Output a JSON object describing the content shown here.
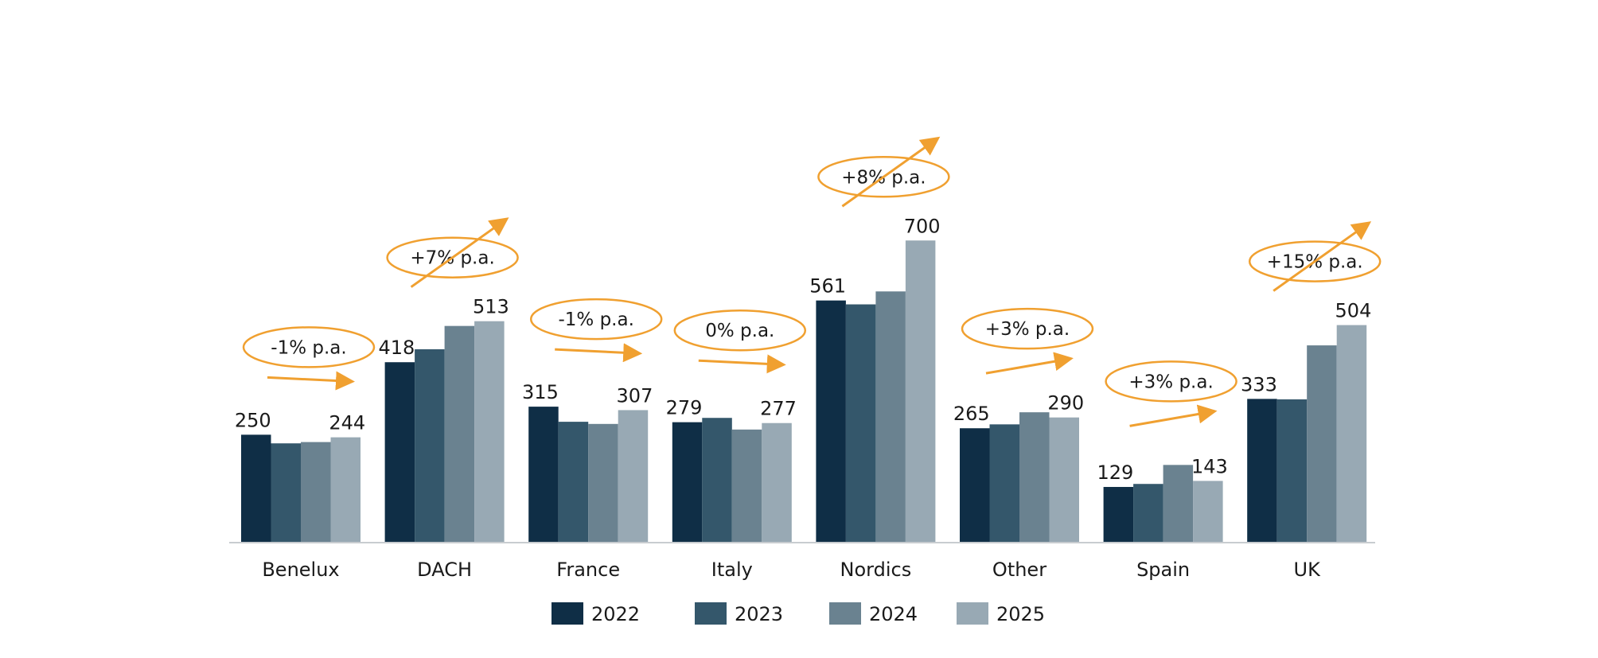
{
  "chart_data": {
    "type": "bar",
    "categories": [
      "Benelux",
      "DACH",
      "France",
      "Italy",
      "Nordics",
      "Other",
      "Spain",
      "UK"
    ],
    "series": [
      {
        "name": "2022",
        "color": "#0f2e46",
        "values": [
          250,
          418,
          315,
          279,
          561,
          265,
          129,
          333
        ]
      },
      {
        "name": "2023",
        "color": "#34576b",
        "values": [
          230,
          448,
          280,
          289,
          552,
          274,
          136,
          332
        ]
      },
      {
        "name": "2024",
        "color": "#6a8290",
        "values": [
          233,
          502,
          275,
          262,
          582,
          302,
          180,
          457
        ]
      },
      {
        "name": "2025",
        "color": "#98a9b4",
        "values": [
          244,
          513,
          307,
          277,
          700,
          290,
          143,
          504
        ]
      }
    ],
    "data_labels": {
      "2022": [
        "250",
        "418",
        "315",
        "279",
        "561",
        "265",
        "129",
        "333"
      ],
      "2025": [
        "244",
        "513",
        "307",
        "277",
        "700",
        "290",
        "143",
        "504"
      ]
    },
    "growth_annotations": [
      "-1% p.a.",
      "+7% p.a.",
      "-1% p.a.",
      "0% p.a.",
      "+8% p.a.",
      "+3% p.a.",
      "+3% p.a.",
      "+15% p.a."
    ],
    "growth_trend": [
      "flat",
      "up",
      "flat",
      "flat",
      "up",
      "slight-up",
      "slight-up",
      "up"
    ],
    "annotation_color": "#f0a030",
    "ylim": [
      0,
      700
    ],
    "legend_position": "bottom",
    "grid": false,
    "title": "",
    "xlabel": "",
    "ylabel": ""
  }
}
